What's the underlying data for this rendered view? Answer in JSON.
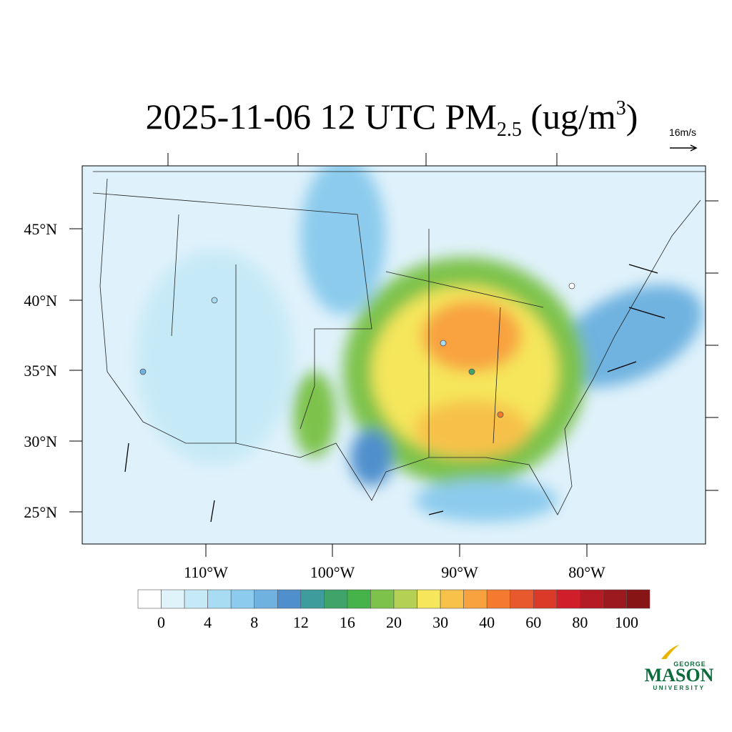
{
  "map": {
    "title": {
      "main": "2025-11-06 12 UTC PM",
      "sub": "2.5",
      "unit": " (ug/m",
      "sup": "3",
      "close": ")"
    },
    "vector_reference": "16m/s",
    "lat_labels": [
      "45°N",
      "40°N",
      "35°N",
      "30°N",
      "25°N"
    ],
    "lon_labels": [
      "110°W",
      "100°W",
      "90°W",
      "80°W"
    ],
    "colorbar": {
      "colors": [
        "#ffffff",
        "#e0f3fb",
        "#c6e9f7",
        "#a8dcf2",
        "#8ccbed",
        "#6fb2e0",
        "#4f8fcc",
        "#3f9c9c",
        "#3fa36a",
        "#46b34a",
        "#7dc24b",
        "#b5d155",
        "#f5e65c",
        "#f7c14a",
        "#f8a23f",
        "#f47a30",
        "#e85a2d",
        "#dc3a28",
        "#d01f2a",
        "#b51b25",
        "#9c1a1f",
        "#871516"
      ],
      "labels": [
        0,
        4,
        8,
        12,
        16,
        20,
        30,
        40,
        60,
        80,
        100
      ]
    },
    "logo": {
      "top": "GEORGE",
      "main": "MASON",
      "bottom": "UNIVERSITY"
    }
  }
}
